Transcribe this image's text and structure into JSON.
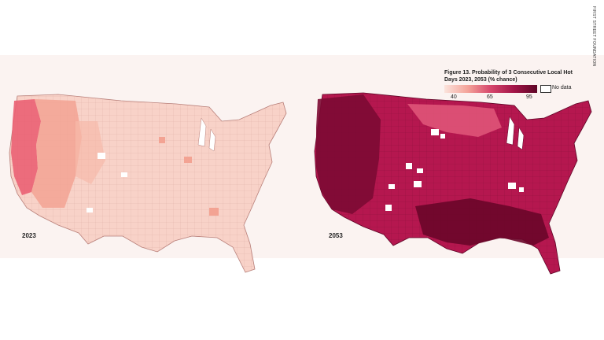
{
  "figure": {
    "title": "Figure 13. Probability of 3 Consecutive Local Hot Days 2023, 2053 (% chance)",
    "credit": "FIRST STREET FOUNDATION"
  },
  "legend": {
    "ticks": [
      "40",
      "65",
      "95"
    ],
    "no_data_label": "No data",
    "colors": [
      "#fbe3dc",
      "#f4a49a",
      "#d6466c",
      "#a31548",
      "#5e0526"
    ]
  },
  "maps": [
    {
      "year": "2023",
      "base_color": "#f8d2c8",
      "high_color": "#ea6173"
    },
    {
      "year": "2053",
      "base_color": "#b5174f",
      "high_color": "#5e0526"
    }
  ]
}
